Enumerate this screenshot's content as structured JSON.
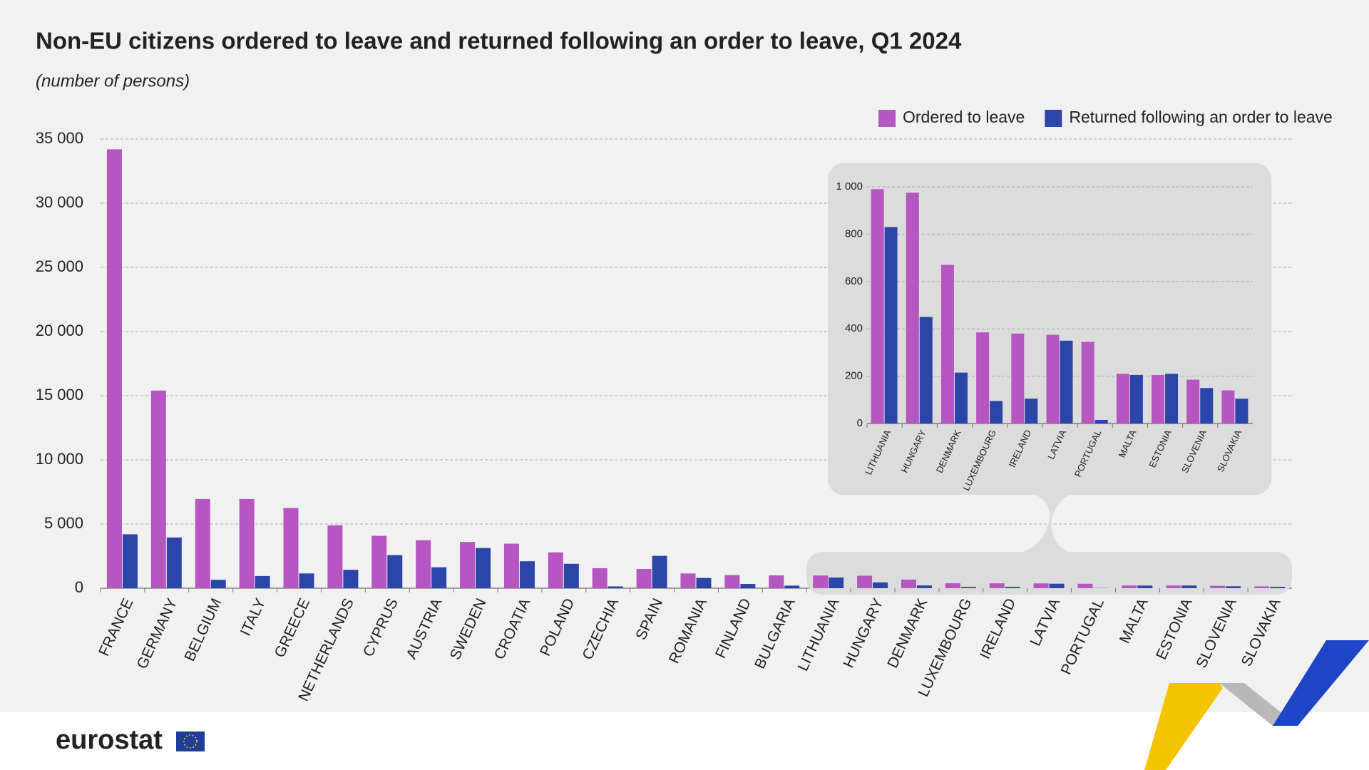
{
  "chart_data": [
    {
      "type": "bar",
      "title": "Non-EU citizens ordered to leave and returned following an order to leave, Q1 2024",
      "subtitle": "(number of persons)",
      "categories": [
        "FRANCE",
        "GERMANY",
        "BELGIUM",
        "ITALY",
        "GREECE",
        "NETHERLANDS",
        "CYPRUS",
        "AUSTRIA",
        "SWEDEN",
        "CROATIA",
        "POLAND",
        "CZECHIA",
        "SPAIN",
        "ROMANIA",
        "FINLAND",
        "BULGARIA",
        "LITHUANIA",
        "HUNGARY",
        "DENMARK",
        "LUXEMBOURG",
        "IRELAND",
        "LATVIA",
        "PORTUGAL",
        "MALTA",
        "ESTONIA",
        "SLOVENIA",
        "SLOVAKIA"
      ],
      "series": [
        {
          "name": "Ordered to leave",
          "color": "#b656c0",
          "values": [
            34200,
            15400,
            6950,
            6950,
            6250,
            4900,
            4080,
            3740,
            3600,
            3470,
            2790,
            1560,
            1500,
            1150,
            1020,
            1000,
            990,
            975,
            670,
            385,
            380,
            375,
            345,
            210,
            205,
            185,
            140
          ]
        },
        {
          "name": "Returned following an order to leave",
          "color": "#2b45a8",
          "values": [
            4200,
            3950,
            650,
            950,
            1150,
            1430,
            2580,
            1630,
            3130,
            2100,
            1900,
            140,
            2520,
            800,
            330,
            200,
            830,
            450,
            215,
            95,
            105,
            350,
            15,
            205,
            210,
            150,
            105
          ]
        }
      ],
      "ylim": [
        0,
        35000
      ],
      "yticks": [
        0,
        {
          "value": 5000,
          "label": "5 000"
        },
        {
          "value": 10000,
          "label": "10 000"
        },
        {
          "value": 15000,
          "label": "15 000"
        },
        {
          "value": 20000,
          "label": "20 000"
        },
        {
          "value": 25000,
          "label": "25 000"
        },
        {
          "value": 30000,
          "label": "30 000"
        },
        {
          "value": 35000,
          "label": "35 000"
        }
      ],
      "grid": true,
      "legend": "top-right"
    },
    {
      "type": "bar",
      "categories": [
        "LITHUANIA",
        "HUNGARY",
        "DENMARK",
        "LUXEMBOURG",
        "IRELAND",
        "LATVIA",
        "PORTUGAL",
        "MALTA",
        "ESTONIA",
        "SLOVENIA",
        "SLOVAKIA"
      ],
      "series": [
        {
          "color": "#b656c0",
          "values": [
            990,
            975,
            670,
            385,
            380,
            375,
            345,
            210,
            205,
            185,
            140
          ]
        },
        {
          "color": "#2b45a8",
          "values": [
            830,
            450,
            215,
            95,
            105,
            350,
            15,
            205,
            210,
            150,
            105
          ]
        }
      ],
      "ylim": [
        0,
        1000
      ],
      "yticks": [
        0,
        200,
        400,
        600,
        800,
        {
          "value": 1000,
          "label": "1 000"
        }
      ],
      "grid": true
    }
  ],
  "footer": {
    "logo": "eurostat"
  }
}
